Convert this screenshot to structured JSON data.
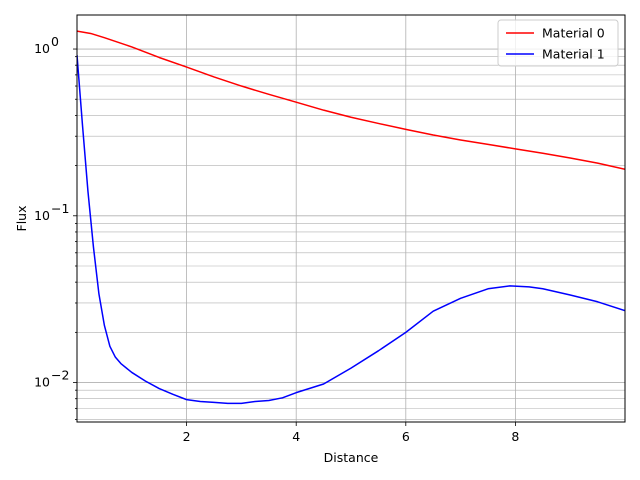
{
  "chart_data": {
    "type": "line",
    "title": "",
    "xlabel": "Distance",
    "ylabel": "Flux",
    "xlim": [
      0.0,
      10.0
    ],
    "ylim": [
      0.0058,
      1.6
    ],
    "yscale": "log",
    "grid": "both major and minor",
    "legend_position": "top-right",
    "x_ticks": [
      2,
      4,
      6,
      8
    ],
    "x_tick_labels": [
      "2",
      "4",
      "6",
      "8"
    ],
    "y_ticks": [
      0.01,
      0.1,
      1.0
    ],
    "y_tick_labels": [
      "10",
      "10",
      "10"
    ],
    "y_tick_exponents": [
      "−2",
      "−1",
      "0"
    ],
    "series": [
      {
        "name": "Material 0",
        "color": "#ff0000",
        "x": [
          0.0,
          0.25,
          0.5,
          1.0,
          1.5,
          2.0,
          2.5,
          3.0,
          3.5,
          4.0,
          4.5,
          5.0,
          5.5,
          6.0,
          6.5,
          7.0,
          7.5,
          8.0,
          8.5,
          9.0,
          9.5,
          10.0
        ],
        "values": [
          1.28,
          1.24,
          1.17,
          1.03,
          0.89,
          0.78,
          0.68,
          0.6,
          0.535,
          0.48,
          0.43,
          0.39,
          0.358,
          0.33,
          0.305,
          0.285,
          0.268,
          0.252,
          0.237,
          0.222,
          0.207,
          0.19
        ]
      },
      {
        "name": "Material 1",
        "color": "#0000ff",
        "x": [
          0.0,
          0.1,
          0.2,
          0.3,
          0.4,
          0.5,
          0.6,
          0.7,
          0.8,
          1.0,
          1.25,
          1.5,
          1.75,
          2.0,
          2.25,
          2.5,
          2.75,
          3.0,
          3.25,
          3.5,
          3.75,
          4.0,
          4.5,
          5.0,
          5.5,
          6.0,
          6.5,
          7.0,
          7.5,
          7.9,
          8.25,
          8.5,
          9.0,
          9.5,
          10.0
        ],
        "values": [
          0.92,
          0.35,
          0.14,
          0.065,
          0.034,
          0.022,
          0.0165,
          0.0142,
          0.013,
          0.0115,
          0.0102,
          0.0092,
          0.0085,
          0.0079,
          0.0077,
          0.0076,
          0.0075,
          0.0075,
          0.0077,
          0.0078,
          0.0081,
          0.0087,
          0.0098,
          0.0122,
          0.0155,
          0.02,
          0.0268,
          0.032,
          0.0365,
          0.038,
          0.0375,
          0.0365,
          0.0335,
          0.0305,
          0.027
        ]
      }
    ]
  }
}
